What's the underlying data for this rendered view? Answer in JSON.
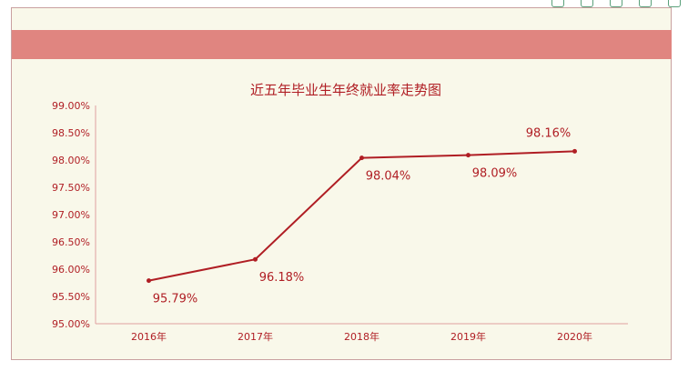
{
  "chart_data": {
    "type": "line",
    "title": "近五年毕业生年终就业率走势图",
    "categories": [
      "2016年",
      "2017年",
      "2018年",
      "2019年",
      "2020年"
    ],
    "series": [
      {
        "values": [
          95.79,
          96.18,
          98.04,
          98.09,
          98.16
        ],
        "labels": [
          "95.79%",
          "96.18%",
          "98.04%",
          "98.09%",
          "98.16%"
        ]
      }
    ],
    "ylim": [
      95.0,
      99.0
    ],
    "yticks": [
      "95.00%",
      "95.50%",
      "96.00%",
      "96.50%",
      "97.00%",
      "97.50%",
      "98.00%",
      "98.50%",
      "99.00%"
    ],
    "grid": false,
    "colors": {
      "line": "#b01e24",
      "text": "#b01e24",
      "axis": "#e0a0a0",
      "banner": "#e08580",
      "background": "#f9f8ea"
    }
  }
}
